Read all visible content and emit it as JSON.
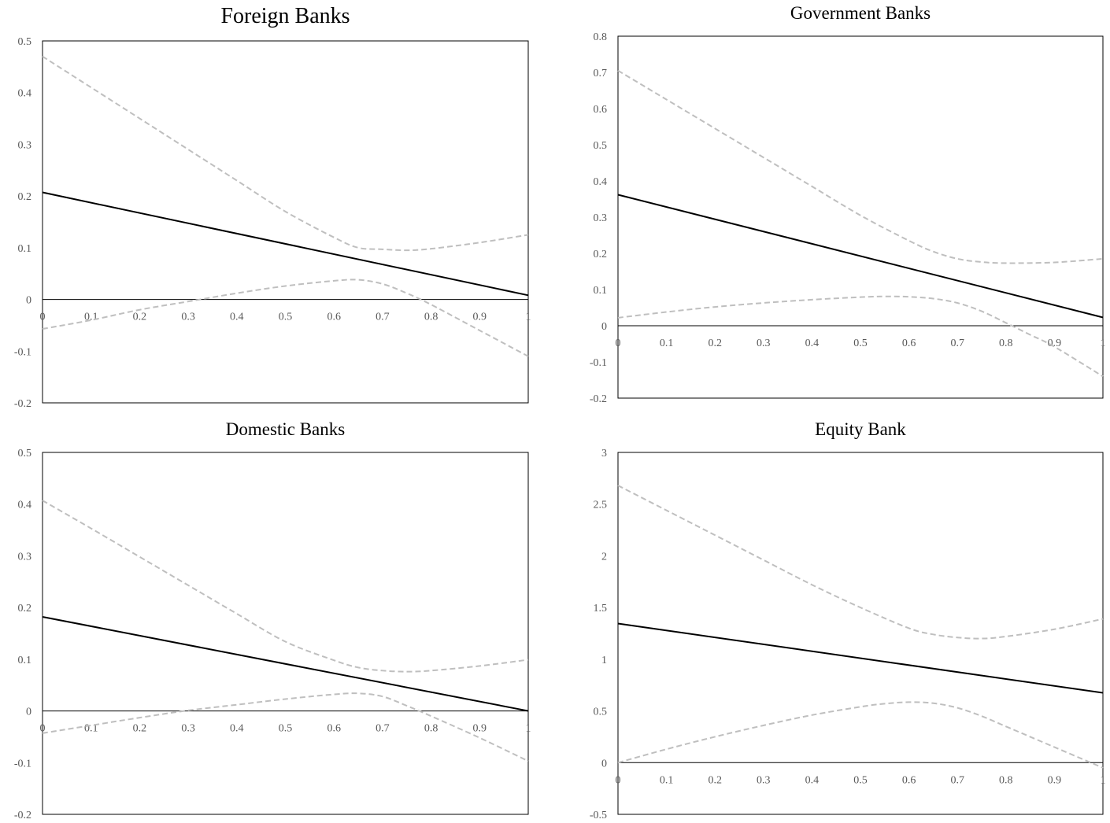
{
  "chart_data": [
    {
      "type": "line",
      "title": "Foreign Banks",
      "xlabel": "",
      "ylabel": "",
      "xlim": [
        0,
        1
      ],
      "ylim": [
        -0.2,
        0.5
      ],
      "x_ticks": [
        "0",
        "0.1",
        "0.2",
        "0.3",
        "0.4",
        "0.5",
        "0.6",
        "0.7",
        "0.8",
        "0.9",
        "1"
      ],
      "y_ticks": [
        "0.5",
        "0.4",
        "0.3",
        "0.2",
        "0.1",
        "0",
        "-0.1",
        "-0.2"
      ],
      "grid": false,
      "legend": "none",
      "series": [
        {
          "role": "estimate",
          "color": "#000000",
          "style": "solid",
          "x": [
            0,
            1
          ],
          "y": [
            0.207,
            0.008
          ]
        },
        {
          "role": "upper-bound",
          "color": "#bfbfbf",
          "style": "dashed",
          "x": [
            0,
            0.1,
            0.2,
            0.3,
            0.4,
            0.5,
            0.6,
            0.65,
            0.7,
            0.75,
            0.8,
            0.9,
            1
          ],
          "y": [
            0.47,
            0.41,
            0.35,
            0.29,
            0.23,
            0.17,
            0.12,
            0.1,
            0.097,
            0.095,
            0.098,
            0.11,
            0.125
          ]
        },
        {
          "role": "lower-bound",
          "color": "#bfbfbf",
          "style": "dashed",
          "x": [
            0,
            0.1,
            0.2,
            0.3,
            0.4,
            0.5,
            0.6,
            0.65,
            0.7,
            0.75,
            0.8,
            0.9,
            1
          ],
          "y": [
            -0.057,
            -0.04,
            -0.02,
            -0.004,
            0.012,
            0.026,
            0.036,
            0.038,
            0.03,
            0.012,
            -0.01,
            -0.06,
            -0.11
          ]
        }
      ]
    },
    {
      "type": "line",
      "title": "Government Banks",
      "xlabel": "",
      "ylabel": "",
      "xlim": [
        0,
        1
      ],
      "ylim": [
        -0.2,
        0.8
      ],
      "x_ticks": [
        "0",
        "0.1",
        "0.2",
        "0.3",
        "0.4",
        "0.5",
        "0.6",
        "0.7",
        "0.8",
        "0.9",
        "1"
      ],
      "y_ticks": [
        "0.8",
        "0.7",
        "0.6",
        "0.5",
        "0.4",
        "0.3",
        "0.2",
        "0.1",
        "0",
        "-0.1",
        "-0.2"
      ],
      "grid": false,
      "legend": "none",
      "series": [
        {
          "role": "estimate",
          "color": "#000000",
          "style": "solid",
          "x": [
            0,
            1
          ],
          "y": [
            0.362,
            0.023
          ]
        },
        {
          "role": "upper-bound",
          "color": "#bfbfbf",
          "style": "dashed",
          "x": [
            0,
            0.1,
            0.2,
            0.3,
            0.4,
            0.5,
            0.6,
            0.65,
            0.7,
            0.75,
            0.8,
            0.9,
            1
          ],
          "y": [
            0.705,
            0.625,
            0.545,
            0.465,
            0.385,
            0.305,
            0.235,
            0.205,
            0.185,
            0.176,
            0.173,
            0.175,
            0.185
          ]
        },
        {
          "role": "lower-bound",
          "color": "#bfbfbf",
          "style": "dashed",
          "x": [
            0,
            0.1,
            0.2,
            0.3,
            0.4,
            0.5,
            0.55,
            0.6,
            0.65,
            0.7,
            0.75,
            0.8,
            0.85,
            0.9,
            1
          ],
          "y": [
            0.022,
            0.038,
            0.052,
            0.063,
            0.072,
            0.079,
            0.081,
            0.08,
            0.075,
            0.063,
            0.04,
            0.008,
            -0.025,
            -0.058,
            -0.14
          ]
        }
      ]
    },
    {
      "type": "line",
      "title": "Domestic Banks",
      "xlabel": "",
      "ylabel": "",
      "xlim": [
        0,
        1
      ],
      "ylim": [
        -0.2,
        0.5
      ],
      "x_ticks": [
        "0",
        "0.1",
        "0.2",
        "0.3",
        "0.4",
        "0.5",
        "0.6",
        "0.7",
        "0.8",
        "0.9",
        "1"
      ],
      "y_ticks": [
        "0.5",
        "0.4",
        "0.3",
        "0.2",
        "0.1",
        "0",
        "-0.1",
        "-0.2"
      ],
      "grid": false,
      "legend": "none",
      "series": [
        {
          "role": "estimate",
          "color": "#000000",
          "style": "solid",
          "x": [
            0,
            1
          ],
          "y": [
            0.182,
            0.0
          ]
        },
        {
          "role": "upper-bound",
          "color": "#bfbfbf",
          "style": "dashed",
          "x": [
            0,
            0.1,
            0.2,
            0.3,
            0.4,
            0.5,
            0.6,
            0.65,
            0.7,
            0.75,
            0.8,
            0.9,
            1
          ],
          "y": [
            0.407,
            0.353,
            0.298,
            0.243,
            0.188,
            0.134,
            0.098,
            0.084,
            0.078,
            0.076,
            0.078,
            0.087,
            0.099
          ]
        },
        {
          "role": "lower-bound",
          "color": "#bfbfbf",
          "style": "dashed",
          "x": [
            0,
            0.1,
            0.2,
            0.3,
            0.4,
            0.5,
            0.6,
            0.65,
            0.7,
            0.75,
            0.8,
            0.9,
            1
          ],
          "y": [
            -0.043,
            -0.028,
            -0.013,
            0.001,
            0.012,
            0.023,
            0.032,
            0.034,
            0.028,
            0.01,
            -0.01,
            -0.052,
            -0.097
          ]
        }
      ]
    },
    {
      "type": "line",
      "title": "Equity Bank",
      "xlabel": "",
      "ylabel": "",
      "xlim": [
        0,
        1
      ],
      "ylim": [
        -0.5,
        3
      ],
      "x_ticks": [
        "0",
        "0.1",
        "0.2",
        "0.3",
        "0.4",
        "0.5",
        "0.6",
        "0.7",
        "0.8",
        "0.9",
        "1"
      ],
      "y_ticks": [
        "3",
        "2.5",
        "2",
        "1.5",
        "1",
        "0.5",
        "0",
        "-0.5"
      ],
      "grid": false,
      "legend": "none",
      "series": [
        {
          "role": "estimate",
          "color": "#000000",
          "style": "solid",
          "x": [
            0,
            1
          ],
          "y": [
            1.345,
            0.675
          ]
        },
        {
          "role": "upper-bound",
          "color": "#bfbfbf",
          "style": "dashed",
          "x": [
            0,
            0.1,
            0.2,
            0.3,
            0.4,
            0.5,
            0.6,
            0.65,
            0.7,
            0.75,
            0.8,
            0.9,
            1
          ],
          "y": [
            2.68,
            2.44,
            2.2,
            1.96,
            1.72,
            1.5,
            1.3,
            1.24,
            1.21,
            1.2,
            1.22,
            1.29,
            1.39
          ]
        },
        {
          "role": "lower-bound",
          "color": "#bfbfbf",
          "style": "dashed",
          "x": [
            0,
            0.1,
            0.2,
            0.3,
            0.4,
            0.5,
            0.55,
            0.6,
            0.65,
            0.7,
            0.75,
            0.8,
            0.9,
            1
          ],
          "y": [
            0.0,
            0.13,
            0.25,
            0.36,
            0.46,
            0.54,
            0.57,
            0.585,
            0.575,
            0.53,
            0.45,
            0.35,
            0.15,
            -0.05
          ]
        }
      ]
    }
  ]
}
